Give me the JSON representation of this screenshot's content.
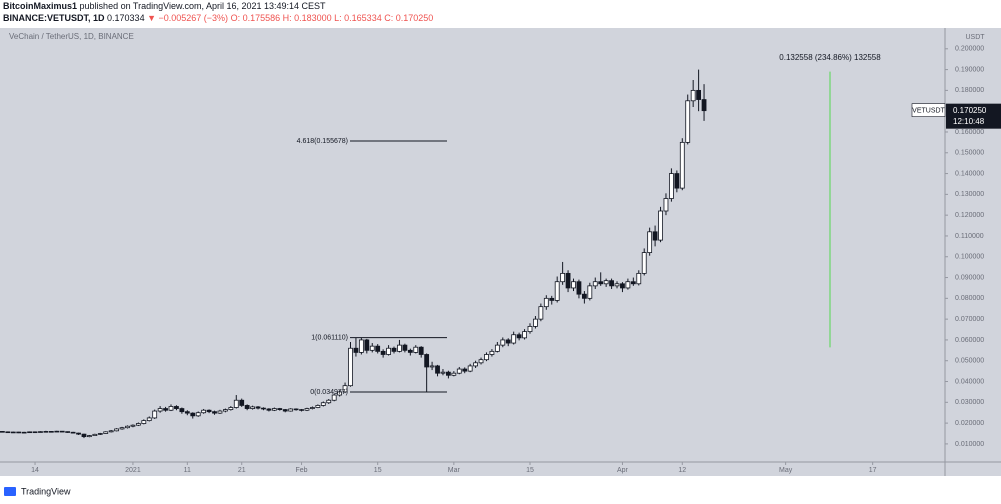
{
  "header": {
    "author": "BitcoinMaximus1",
    "published": "published on TradingView.com, April 16, 2021 13:49:14 CEST",
    "symbol": "BINANCE:VETUSDT, 1D",
    "last": "0.170334",
    "change": "▼ −0.005267 (−3%)",
    "ohlc_text": "O: 0.175586 H: 0.183000 L: 0.165334 C: 0.170250"
  },
  "footer": {
    "brand": "TradingView"
  },
  "chart_data": {
    "type": "candlestick",
    "legend": "VeChain / TetherUS, 1D, BINANCE",
    "y_unit": "USDT",
    "up_color": "#ffffff",
    "down_color": "#131722",
    "background": "#d1d4dc",
    "grid": false,
    "ylim": [
      0.0013,
      0.21
    ],
    "yticks": [
      {
        "value": 0.01,
        "label": "0.010000"
      },
      {
        "value": 0.02,
        "label": "0.020000"
      },
      {
        "value": 0.03,
        "label": "0.030000"
      },
      {
        "value": 0.04,
        "label": "0.040000"
      },
      {
        "value": 0.05,
        "label": "0.050000"
      },
      {
        "value": 0.06,
        "label": "0.060000"
      },
      {
        "value": 0.07,
        "label": "0.070000"
      },
      {
        "value": 0.08,
        "label": "0.080000"
      },
      {
        "value": 0.09,
        "label": "0.090000"
      },
      {
        "value": 0.1,
        "label": "0.100000"
      },
      {
        "value": 0.11,
        "label": "0.110000"
      },
      {
        "value": 0.12,
        "label": "0.120000"
      },
      {
        "value": 0.13,
        "label": "0.130000"
      },
      {
        "value": 0.14,
        "label": "0.140000"
      },
      {
        "value": 0.15,
        "label": "0.150000"
      },
      {
        "value": 0.16,
        "label": "0.160000"
      },
      {
        "value": 0.18,
        "label": "0.180000"
      },
      {
        "value": 0.19,
        "label": "0.190000"
      },
      {
        "value": 0.2,
        "label": "0.200000"
      }
    ],
    "xlim": [
      -0.44,
      173.3
    ],
    "xticks": [
      {
        "value": 6,
        "label": "14"
      },
      {
        "value": 24,
        "label": "2021"
      },
      {
        "value": 34,
        "label": "11"
      },
      {
        "value": 44,
        "label": "21"
      },
      {
        "value": 55,
        "label": "Feb"
      },
      {
        "value": 69,
        "label": "15"
      },
      {
        "value": 83,
        "label": "Mar"
      },
      {
        "value": 97,
        "label": "15"
      },
      {
        "value": 114,
        "label": "Apr"
      },
      {
        "value": 125,
        "label": "12"
      },
      {
        "value": 144,
        "label": "May"
      },
      {
        "value": 160,
        "label": "17"
      }
    ],
    "ohlc": [
      [
        0.016,
        0.0162,
        0.0155,
        0.0158
      ],
      [
        0.0158,
        0.016,
        0.0153,
        0.0155
      ],
      [
        0.0155,
        0.0159,
        0.0154,
        0.0157
      ],
      [
        0.0157,
        0.0158,
        0.0152,
        0.0154
      ],
      [
        0.0154,
        0.0158,
        0.0153,
        0.0156
      ],
      [
        0.0156,
        0.016,
        0.0155,
        0.0158
      ],
      [
        0.0158,
        0.016,
        0.0155,
        0.0157
      ],
      [
        0.0157,
        0.0161,
        0.0156,
        0.0159
      ],
      [
        0.0159,
        0.0163,
        0.0157,
        0.016
      ],
      [
        0.016,
        0.0162,
        0.0156,
        0.0158
      ],
      [
        0.0158,
        0.0163,
        0.0157,
        0.0161
      ],
      [
        0.0161,
        0.0162,
        0.0157,
        0.0159
      ],
      [
        0.0159,
        0.016,
        0.0153,
        0.0156
      ],
      [
        0.0156,
        0.0158,
        0.015,
        0.0152
      ],
      [
        0.0152,
        0.0154,
        0.0143,
        0.0147
      ],
      [
        0.0147,
        0.0149,
        0.0128,
        0.0135
      ],
      [
        0.0135,
        0.0143,
        0.0132,
        0.014
      ],
      [
        0.014,
        0.0149,
        0.0138,
        0.0146
      ],
      [
        0.0146,
        0.0153,
        0.0143,
        0.015
      ],
      [
        0.015,
        0.0161,
        0.0148,
        0.0158
      ],
      [
        0.0158,
        0.0167,
        0.0155,
        0.0163
      ],
      [
        0.0163,
        0.0176,
        0.016,
        0.0172
      ],
      [
        0.0172,
        0.0182,
        0.0168,
        0.0178
      ],
      [
        0.0178,
        0.0189,
        0.0174,
        0.0185
      ],
      [
        0.0185,
        0.0194,
        0.018,
        0.019
      ],
      [
        0.019,
        0.0203,
        0.0186,
        0.0198
      ],
      [
        0.0198,
        0.0218,
        0.0194,
        0.0212
      ],
      [
        0.0212,
        0.0232,
        0.0208,
        0.0225
      ],
      [
        0.0225,
        0.0265,
        0.022,
        0.0258
      ],
      [
        0.0258,
        0.0282,
        0.025,
        0.027
      ],
      [
        0.027,
        0.0278,
        0.0255,
        0.0262
      ],
      [
        0.0262,
        0.029,
        0.0258,
        0.028
      ],
      [
        0.028,
        0.0286,
        0.0262,
        0.027
      ],
      [
        0.027,
        0.0275,
        0.0245,
        0.0255
      ],
      [
        0.0255,
        0.0262,
        0.0238,
        0.0248
      ],
      [
        0.0248,
        0.0252,
        0.0222,
        0.0235
      ],
      [
        0.0235,
        0.0256,
        0.023,
        0.025
      ],
      [
        0.025,
        0.0268,
        0.0245,
        0.0262
      ],
      [
        0.0262,
        0.0266,
        0.0248,
        0.0255
      ],
      [
        0.0255,
        0.026,
        0.024,
        0.0248
      ],
      [
        0.0248,
        0.0264,
        0.0244,
        0.0258
      ],
      [
        0.0258,
        0.027,
        0.0252,
        0.0265
      ],
      [
        0.0265,
        0.0282,
        0.026,
        0.0275
      ],
      [
        0.0275,
        0.0335,
        0.027,
        0.031
      ],
      [
        0.031,
        0.0318,
        0.0278,
        0.0285
      ],
      [
        0.0285,
        0.029,
        0.0262,
        0.027
      ],
      [
        0.027,
        0.0284,
        0.0265,
        0.0278
      ],
      [
        0.0278,
        0.0282,
        0.0266,
        0.0272
      ],
      [
        0.0272,
        0.0276,
        0.0262,
        0.0268
      ],
      [
        0.0268,
        0.0272,
        0.0256,
        0.0262
      ],
      [
        0.0262,
        0.0275,
        0.0258,
        0.027
      ],
      [
        0.027,
        0.0273,
        0.026,
        0.0265
      ],
      [
        0.0265,
        0.0268,
        0.0252,
        0.0258
      ],
      [
        0.0258,
        0.0272,
        0.0255,
        0.0268
      ],
      [
        0.0268,
        0.0271,
        0.026,
        0.0265
      ],
      [
        0.0265,
        0.0268,
        0.0256,
        0.0262
      ],
      [
        0.0262,
        0.0274,
        0.0258,
        0.027
      ],
      [
        0.027,
        0.028,
        0.0266,
        0.0275
      ],
      [
        0.0275,
        0.029,
        0.0272,
        0.0285
      ],
      [
        0.0285,
        0.0304,
        0.028,
        0.0298
      ],
      [
        0.0298,
        0.0316,
        0.0292,
        0.031
      ],
      [
        0.031,
        0.0342,
        0.0305,
        0.0335
      ],
      [
        0.0335,
        0.0358,
        0.0328,
        0.035
      ],
      [
        0.035,
        0.0395,
        0.0345,
        0.038
      ],
      [
        0.038,
        0.059,
        0.0375,
        0.056
      ],
      [
        0.056,
        0.0611,
        0.052,
        0.054
      ],
      [
        0.054,
        0.0611,
        0.053,
        0.06
      ],
      [
        0.06,
        0.0605,
        0.0535,
        0.055
      ],
      [
        0.055,
        0.0585,
        0.054,
        0.057
      ],
      [
        0.057,
        0.058,
        0.0535,
        0.0545
      ],
      [
        0.0545,
        0.0555,
        0.0515,
        0.053
      ],
      [
        0.053,
        0.0575,
        0.0525,
        0.056
      ],
      [
        0.056,
        0.0568,
        0.0535,
        0.0545
      ],
      [
        0.0545,
        0.06,
        0.054,
        0.0575
      ],
      [
        0.0575,
        0.0582,
        0.054,
        0.055
      ],
      [
        0.055,
        0.0558,
        0.0525,
        0.054
      ],
      [
        0.054,
        0.0575,
        0.0535,
        0.0565
      ],
      [
        0.0565,
        0.057,
        0.0515,
        0.053
      ],
      [
        0.053,
        0.0535,
        0.035,
        0.047
      ],
      [
        0.047,
        0.0495,
        0.0455,
        0.0475
      ],
      [
        0.0475,
        0.048,
        0.0425,
        0.044
      ],
      [
        0.044,
        0.046,
        0.043,
        0.0445
      ],
      [
        0.0445,
        0.0452,
        0.0415,
        0.043
      ],
      [
        0.043,
        0.045,
        0.0425,
        0.044
      ],
      [
        0.044,
        0.047,
        0.0435,
        0.046
      ],
      [
        0.046,
        0.0468,
        0.044,
        0.045
      ],
      [
        0.045,
        0.0485,
        0.0445,
        0.0475
      ],
      [
        0.0475,
        0.05,
        0.0465,
        0.049
      ],
      [
        0.049,
        0.0515,
        0.0482,
        0.0505
      ],
      [
        0.0505,
        0.054,
        0.0498,
        0.053
      ],
      [
        0.053,
        0.0556,
        0.052,
        0.0545
      ],
      [
        0.0545,
        0.059,
        0.054,
        0.0575
      ],
      [
        0.0575,
        0.0612,
        0.0565,
        0.06
      ],
      [
        0.06,
        0.0608,
        0.057,
        0.0585
      ],
      [
        0.0585,
        0.064,
        0.0578,
        0.0625
      ],
      [
        0.0625,
        0.0635,
        0.0598,
        0.061
      ],
      [
        0.061,
        0.0652,
        0.0602,
        0.064
      ],
      [
        0.064,
        0.068,
        0.063,
        0.0665
      ],
      [
        0.0665,
        0.0715,
        0.0655,
        0.07
      ],
      [
        0.07,
        0.0775,
        0.069,
        0.076
      ],
      [
        0.076,
        0.0815,
        0.0745,
        0.08
      ],
      [
        0.08,
        0.0812,
        0.077,
        0.079
      ],
      [
        0.079,
        0.0905,
        0.078,
        0.088
      ],
      [
        0.088,
        0.0975,
        0.0865,
        0.092
      ],
      [
        0.092,
        0.0935,
        0.083,
        0.085
      ],
      [
        0.085,
        0.0895,
        0.0835,
        0.088
      ],
      [
        0.088,
        0.089,
        0.08,
        0.082
      ],
      [
        0.082,
        0.0835,
        0.0775,
        0.08
      ],
      [
        0.08,
        0.0875,
        0.079,
        0.086
      ],
      [
        0.086,
        0.09,
        0.0845,
        0.088
      ],
      [
        0.088,
        0.0925,
        0.086,
        0.087
      ],
      [
        0.087,
        0.0895,
        0.0855,
        0.0885
      ],
      [
        0.0885,
        0.0895,
        0.0845,
        0.086
      ],
      [
        0.086,
        0.0882,
        0.0848,
        0.087
      ],
      [
        0.087,
        0.0878,
        0.083,
        0.085
      ],
      [
        0.085,
        0.0895,
        0.0842,
        0.088
      ],
      [
        0.088,
        0.09,
        0.086,
        0.087
      ],
      [
        0.087,
        0.0935,
        0.0862,
        0.092
      ],
      [
        0.092,
        0.104,
        0.091,
        0.102
      ],
      [
        0.102,
        0.114,
        0.1005,
        0.112
      ],
      [
        0.112,
        0.115,
        0.105,
        0.108
      ],
      [
        0.108,
        0.124,
        0.107,
        0.122
      ],
      [
        0.122,
        0.1305,
        0.12,
        0.128
      ],
      [
        0.128,
        0.1425,
        0.1265,
        0.14
      ],
      [
        0.14,
        0.1415,
        0.131,
        0.133
      ],
      [
        0.133,
        0.157,
        0.132,
        0.155
      ],
      [
        0.155,
        0.178,
        0.154,
        0.175
      ],
      [
        0.175,
        0.185,
        0.172,
        0.18
      ],
      [
        0.18,
        0.19,
        0.17,
        0.1756
      ],
      [
        0.175586,
        0.183,
        0.165334,
        0.17025
      ]
    ],
    "fib_levels": [
      {
        "value": 0.155678,
        "label": "4.618(0.155678)"
      },
      {
        "value": 0.06111,
        "label": "1(0.061110)"
      },
      {
        "value": 0.034977,
        "label": "0(0.034977)"
      }
    ],
    "measure": {
      "label": "0.132558 (234.86%) 132558",
      "from": 0.0564,
      "to": 0.189,
      "color": "#7ed67e"
    },
    "last_price": {
      "value": 0.17025,
      "label": "0.170250"
    },
    "last_symbol": "VETUSDT",
    "countdown": "12:10:48"
  }
}
